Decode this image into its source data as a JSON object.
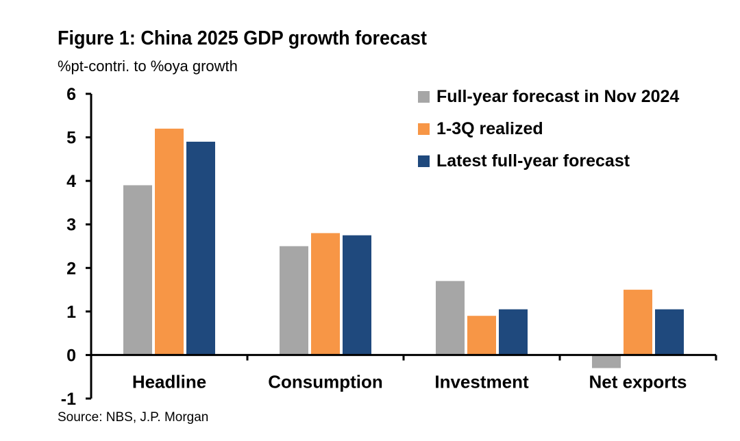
{
  "chart_data": {
    "type": "bar",
    "title": "Figure 1: China 2025 GDP growth forecast",
    "subtitle": "%pt-contri. to %oya growth",
    "source": "Source: NBS, J.P. Morgan",
    "categories": [
      "Headline",
      "Consumption",
      "Investment",
      "Net exports"
    ],
    "series": [
      {
        "name": "Full-year forecast in Nov 2024",
        "color": "#a6a6a6",
        "values": [
          3.9,
          2.5,
          1.7,
          -0.3
        ]
      },
      {
        "name": "1-3Q realized",
        "color": "#f79646",
        "values": [
          5.2,
          2.8,
          0.9,
          1.5
        ]
      },
      {
        "name": "Latest full-year forecast",
        "color": "#1f497d",
        "values": [
          4.9,
          2.75,
          1.05,
          1.05
        ]
      }
    ],
    "ylim": [
      -1,
      6
    ],
    "yticks": [
      "6",
      "5",
      "4",
      "3",
      "2",
      "1",
      "0",
      "-1"
    ],
    "grid": false,
    "legend_position": "top-right"
  }
}
